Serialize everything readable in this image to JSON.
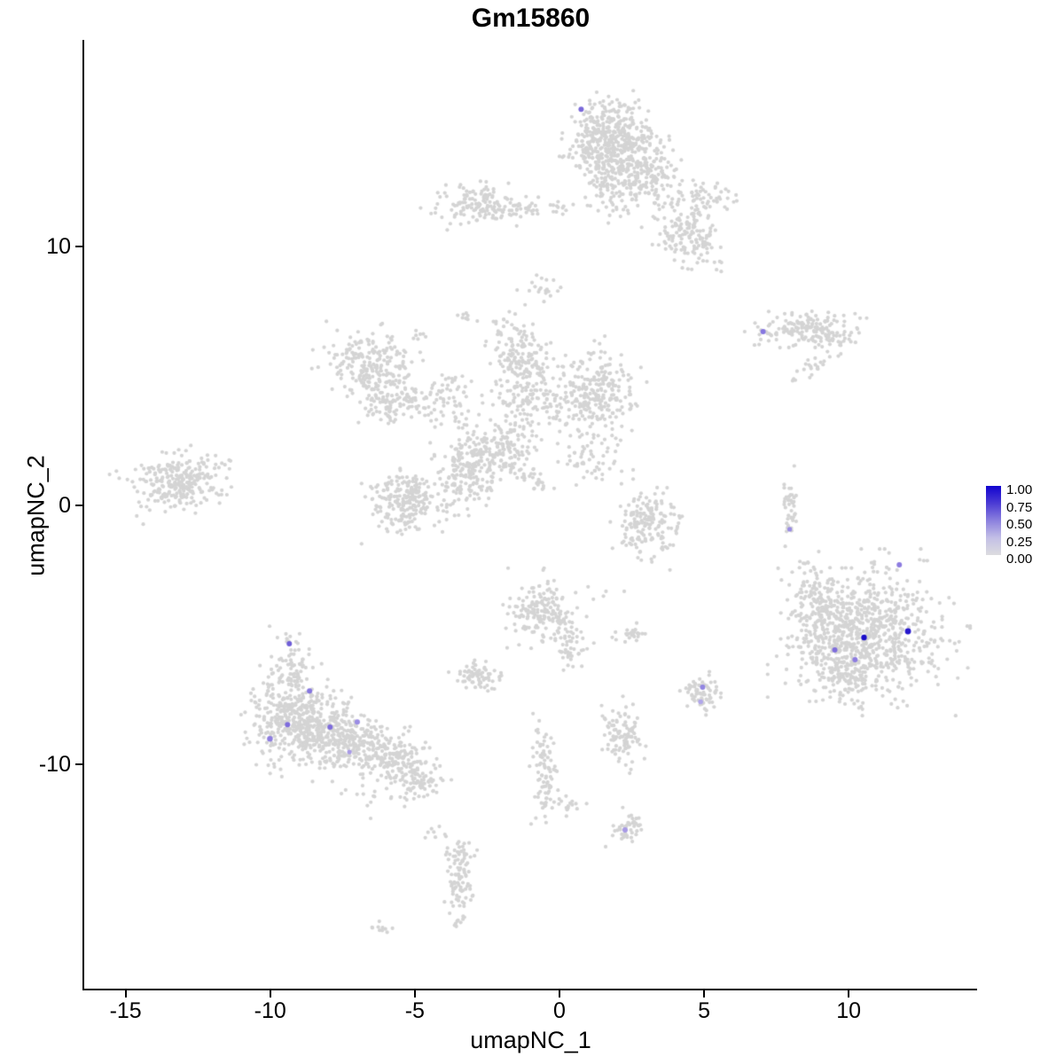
{
  "chart_data": {
    "type": "scatter",
    "title": "Gm15860",
    "xlabel": "umapNC_1",
    "ylabel": "umapNC_2",
    "x_ticks": [
      "-15",
      "-10",
      "-5",
      "0",
      "5",
      "10"
    ],
    "x_tick_values": [
      -15,
      -10,
      -5,
      0,
      5,
      10
    ],
    "y_ticks": [
      "10",
      "0",
      "-10"
    ],
    "y_tick_values": [
      10,
      0,
      -10
    ],
    "x_range": [
      -16.43,
      14.44
    ],
    "y_range": [
      -18.66,
      17.98
    ],
    "grid": false,
    "legend_position": "right",
    "point_color_low": "#d4d4d4",
    "point_radius": 2.1,
    "seed": 42,
    "legend": {
      "labels": [
        "1.00",
        "0.75",
        "0.50",
        "0.25",
        "0.00"
      ],
      "gradient_stops": [
        "#1203cf",
        "#4b3bd4",
        "#8b80de",
        "#c3bfe6",
        "#dcdcdf"
      ]
    },
    "cluster_fields": [
      "cx",
      "cy",
      "sx",
      "sy",
      "n",
      "rot_deg"
    ],
    "clusters": [
      [
        1.7,
        14.2,
        0.75,
        0.65,
        430,
        0
      ],
      [
        1.6,
        12.4,
        0.35,
        0.55,
        80,
        0
      ],
      [
        2.9,
        12.7,
        0.6,
        0.7,
        200,
        0
      ],
      [
        4.4,
        10.6,
        0.5,
        0.6,
        130,
        0
      ],
      [
        5.1,
        11.9,
        0.5,
        0.3,
        50,
        0
      ],
      [
        5.0,
        9.8,
        0.3,
        0.4,
        22,
        0
      ],
      [
        -2.7,
        11.6,
        0.75,
        0.4,
        140,
        0
      ],
      [
        -0.9,
        11.5,
        0.9,
        0.15,
        40,
        0
      ],
      [
        8.3,
        6.85,
        0.85,
        0.28,
        130,
        8
      ],
      [
        9.4,
        6.4,
        0.45,
        0.3,
        55,
        0
      ],
      [
        8.8,
        5.4,
        0.3,
        0.18,
        18,
        0
      ],
      [
        8.2,
        4.9,
        0.08,
        0.08,
        3,
        0
      ],
      [
        -0.5,
        8.3,
        0.35,
        0.25,
        20,
        0
      ],
      [
        -1.7,
        6.9,
        0.4,
        0.3,
        28,
        0
      ],
      [
        -3.4,
        7.3,
        0.2,
        0.12,
        8,
        0
      ],
      [
        -4.9,
        6.6,
        0.15,
        0.1,
        6,
        0
      ],
      [
        -6.6,
        5.5,
        0.7,
        0.6,
        200,
        0
      ],
      [
        -5.8,
        4.1,
        0.6,
        0.45,
        120,
        0
      ],
      [
        -3.9,
        4.2,
        0.6,
        0.5,
        70,
        0
      ],
      [
        -1.3,
        5.6,
        0.5,
        0.5,
        130,
        0
      ],
      [
        -1.0,
        4.0,
        0.6,
        0.5,
        130,
        0
      ],
      [
        1.2,
        4.3,
        0.65,
        0.8,
        260,
        0
      ],
      [
        -1.8,
        2.4,
        0.6,
        0.4,
        100,
        0
      ],
      [
        -3.2,
        1.3,
        0.55,
        0.7,
        200,
        0
      ],
      [
        -1.6,
        1.4,
        0.85,
        0.18,
        60,
        -32
      ],
      [
        1.1,
        1.7,
        0.55,
        0.4,
        50,
        0
      ],
      [
        -13.2,
        0.9,
        0.8,
        0.5,
        280,
        12
      ],
      [
        -5.3,
        0.2,
        0.55,
        0.6,
        220,
        0
      ],
      [
        3.1,
        -0.8,
        0.55,
        0.65,
        170,
        0
      ],
      [
        7.95,
        0.1,
        0.12,
        0.6,
        40,
        0
      ],
      [
        10.7,
        -4.9,
        1.25,
        1.15,
        720,
        0
      ],
      [
        9.1,
        -4.5,
        0.55,
        0.85,
        150,
        0
      ],
      [
        9.9,
        -6.7,
        0.75,
        0.45,
        110,
        0
      ],
      [
        8.8,
        -3.2,
        0.45,
        0.65,
        55,
        0
      ],
      [
        -9.2,
        -6.3,
        0.35,
        0.7,
        90,
        0
      ],
      [
        -9.3,
        -8.3,
        0.75,
        0.85,
        320,
        0
      ],
      [
        -8.1,
        -8.7,
        0.7,
        0.7,
        240,
        0
      ],
      [
        -6.8,
        -9.3,
        0.7,
        0.55,
        190,
        0
      ],
      [
        -5.5,
        -10.0,
        0.6,
        0.45,
        140,
        0
      ],
      [
        -4.7,
        -10.6,
        0.35,
        0.3,
        50,
        0
      ],
      [
        -6.2,
        -11.3,
        0.8,
        0.35,
        18,
        0
      ],
      [
        -4.4,
        -12.7,
        0.3,
        0.15,
        8,
        0
      ],
      [
        -0.6,
        -4.1,
        0.55,
        0.6,
        180,
        0
      ],
      [
        0.35,
        -5.5,
        0.3,
        0.4,
        45,
        0
      ],
      [
        -2.85,
        -6.6,
        0.35,
        0.25,
        70,
        0
      ],
      [
        2.4,
        -5.0,
        0.25,
        0.2,
        24,
        0
      ],
      [
        1.4,
        -3.3,
        0.3,
        0.15,
        6,
        0
      ],
      [
        4.95,
        -7.3,
        0.28,
        0.32,
        70,
        0
      ],
      [
        2.2,
        -8.8,
        0.35,
        0.55,
        100,
        0
      ],
      [
        -0.55,
        -10.1,
        0.2,
        0.9,
        85,
        0
      ],
      [
        0.1,
        -11.6,
        0.3,
        0.2,
        18,
        0
      ],
      [
        2.35,
        -12.45,
        0.28,
        0.28,
        45,
        0
      ],
      [
        -3.5,
        -14.8,
        0.22,
        0.75,
        80,
        0
      ],
      [
        -3.4,
        -13.5,
        0.3,
        0.25,
        25,
        0
      ],
      [
        -6.2,
        -16.35,
        0.22,
        0.12,
        10,
        0
      ]
    ],
    "highlight_fields": [
      "x",
      "y",
      "color",
      "radius"
    ],
    "highlighted_points": [
      [
        0.75,
        15.3,
        "#7a68da",
        3
      ],
      [
        7.04,
        6.71,
        "#8576e0",
        3
      ],
      [
        7.96,
        -0.92,
        "#9a8ce4",
        2.6
      ],
      [
        11.75,
        -2.29,
        "#8d7ce0",
        3
      ],
      [
        12.05,
        -4.86,
        "#2617cd",
        3.4
      ],
      [
        10.53,
        -5.1,
        "#1a0cc9",
        3.2
      ],
      [
        9.52,
        -5.58,
        "#7e6cdc",
        3
      ],
      [
        10.22,
        -5.96,
        "#8d7ce0",
        3
      ],
      [
        -9.34,
        -5.34,
        "#6f5ed8",
        3
      ],
      [
        -8.64,
        -7.16,
        "#8576e0",
        3
      ],
      [
        -9.4,
        -8.46,
        "#7e6cdc",
        3
      ],
      [
        -10.01,
        -9.01,
        "#8d7ce0",
        3.2
      ],
      [
        -7.93,
        -8.56,
        "#7e6cdc",
        3
      ],
      [
        -6.99,
        -8.36,
        "#9a8ce4",
        3
      ],
      [
        -7.26,
        -9.52,
        "#a89ae6",
        2.6
      ],
      [
        4.95,
        -7.02,
        "#9286e2",
        3
      ],
      [
        4.88,
        -7.58,
        "#b0a6ea",
        2.8
      ],
      [
        2.27,
        -12.53,
        "#a89ae6",
        3
      ]
    ]
  }
}
